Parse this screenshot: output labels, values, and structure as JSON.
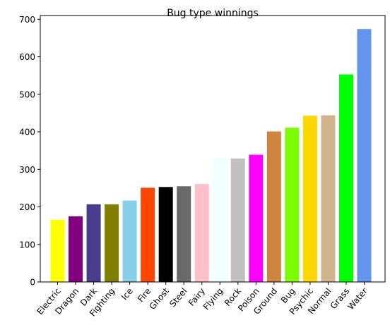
{
  "chart_data": {
    "type": "bar",
    "title": "Bug type winnings",
    "xlabel": "",
    "ylabel": "",
    "ylim": [
      0,
      710
    ],
    "yticks": [
      0,
      100,
      200,
      300,
      400,
      500,
      600,
      700
    ],
    "grid": false,
    "categories": [
      "Electric",
      "Dragon",
      "Dark",
      "Fighting",
      "Ice",
      "Fire",
      "Ghost",
      "Steel",
      "Fairy",
      "Flying",
      "Rock",
      "Poison",
      "Ground",
      "Bug",
      "Psychic",
      "Normal",
      "Grass",
      "Water"
    ],
    "values": [
      166,
      175,
      207,
      207,
      217,
      251,
      253,
      255,
      261,
      329,
      329,
      339,
      401,
      411,
      443,
      444,
      553,
      674
    ],
    "colors": [
      "#ffff00",
      "#800080",
      "#483d8b",
      "#808000",
      "#87ceeb",
      "#ff4500",
      "#000000",
      "#696969",
      "#ffc0cb",
      "#f0ffff",
      "#c0c0c0",
      "#ff00ff",
      "#cd853f",
      "#7cfc00",
      "#ffd700",
      "#d2b48c",
      "#00ff00",
      "#6495ed"
    ]
  }
}
